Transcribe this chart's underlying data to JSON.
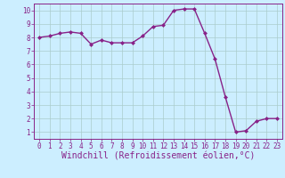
{
  "x": [
    0,
    1,
    2,
    3,
    4,
    5,
    6,
    7,
    8,
    9,
    10,
    11,
    12,
    13,
    14,
    15,
    16,
    17,
    18,
    19,
    20,
    21,
    22,
    23
  ],
  "y": [
    8.0,
    8.1,
    8.3,
    8.4,
    8.3,
    7.5,
    7.8,
    7.6,
    7.6,
    7.6,
    8.1,
    8.8,
    8.9,
    10.0,
    10.1,
    10.1,
    8.3,
    6.4,
    3.6,
    1.0,
    1.1,
    1.8,
    2.0,
    2.0
  ],
  "line_color": "#882288",
  "marker": "D",
  "marker_size": 2.0,
  "linewidth": 1.0,
  "bg_color": "#cceeff",
  "grid_color": "#aacccc",
  "xlabel": "Windchill (Refroidissement éolien,°C)",
  "xlabel_color": "#882288",
  "ylabel": "",
  "xlim": [
    -0.5,
    23.5
  ],
  "ylim": [
    0.5,
    10.5
  ],
  "yticks": [
    1,
    2,
    3,
    4,
    5,
    6,
    7,
    8,
    9,
    10
  ],
  "xticks": [
    0,
    1,
    2,
    3,
    4,
    5,
    6,
    7,
    8,
    9,
    10,
    11,
    12,
    13,
    14,
    15,
    16,
    17,
    18,
    19,
    20,
    21,
    22,
    23
  ],
  "tick_color": "#882288",
  "tick_labelsize": 5.5,
  "xlabel_fontsize": 7.0
}
